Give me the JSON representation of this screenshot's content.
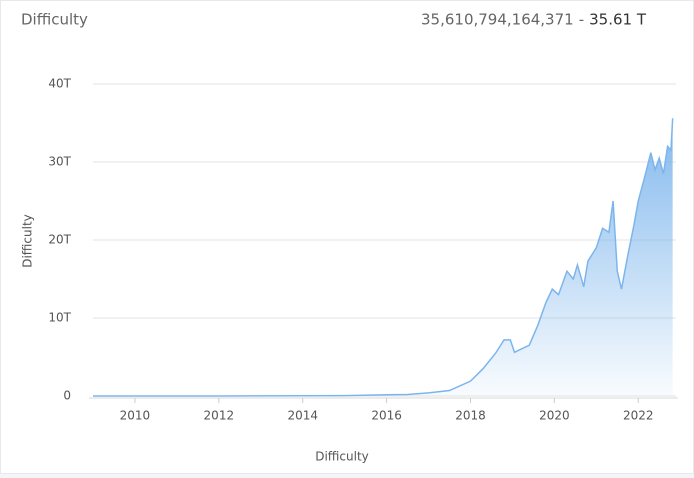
{
  "header": {
    "title": "Difficulty",
    "value": "35,610,794,164,371",
    "separator": "-",
    "value_short": "35.61 T"
  },
  "chart_data": {
    "type": "area",
    "y_label": "Difficulty",
    "x_label": "Difficulty",
    "xlim": [
      2009,
      2022.9
    ],
    "xticks": [
      2010,
      2012,
      2014,
      2016,
      2018,
      2020,
      2022
    ],
    "ylim": [
      0,
      40
    ],
    "yticks": [
      0,
      {
        "value": 10,
        "label": "10T"
      },
      {
        "value": 20,
        "label": "20T"
      },
      {
        "value": 30,
        "label": "30T"
      },
      {
        "value": 40,
        "label": "40T"
      }
    ],
    "grid": true,
    "series": [
      {
        "name": "Difficulty",
        "color": "#7cb5ec",
        "x": [
          2009.0,
          2012.0,
          2014.0,
          2015.0,
          2016.0,
          2016.5,
          2017.0,
          2017.5,
          2018.0,
          2018.3,
          2018.6,
          2018.8,
          2018.95,
          2019.05,
          2019.2,
          2019.4,
          2019.6,
          2019.8,
          2019.95,
          2020.1,
          2020.3,
          2020.45,
          2020.55,
          2020.7,
          2020.8,
          2021.0,
          2021.15,
          2021.3,
          2021.4,
          2021.5,
          2021.6,
          2021.75,
          2021.9,
          2022.0,
          2022.15,
          2022.3,
          2022.4,
          2022.5,
          2022.6,
          2022.7,
          2022.78,
          2022.82
        ],
        "values": [
          0,
          0.002,
          0.03,
          0.05,
          0.16,
          0.2,
          0.4,
          0.7,
          1.9,
          3.5,
          5.5,
          7.2,
          7.2,
          5.6,
          6,
          6.5,
          9,
          12,
          13.7,
          13,
          16,
          15,
          16.8,
          14,
          17.3,
          19,
          21.5,
          21,
          25,
          16,
          13.7,
          18,
          22,
          25,
          28,
          31.2,
          29,
          30.5,
          28.5,
          32,
          31.5,
          35.61
        ]
      }
    ]
  }
}
